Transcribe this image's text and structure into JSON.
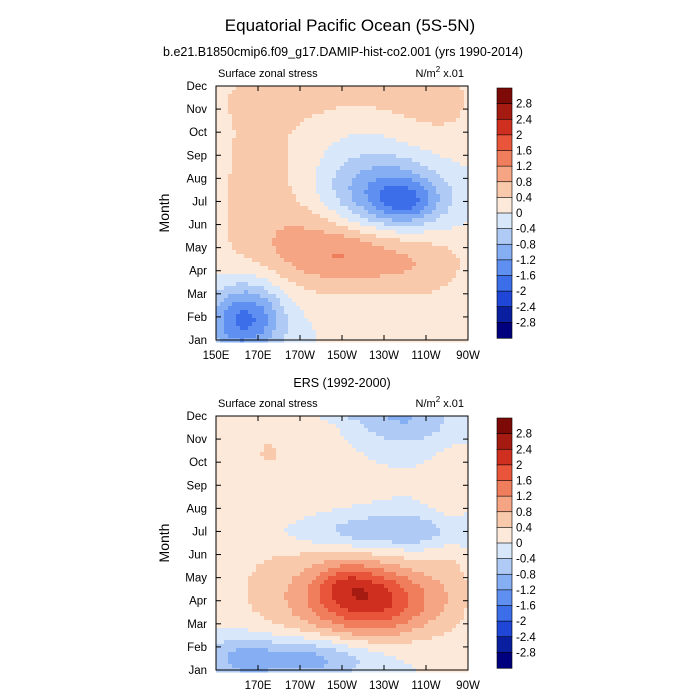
{
  "title": "Equatorial Pacific Ocean (5S-5N)",
  "subtitle": "b.e21.B1850cmip6.f09_g17.DAMIP-hist-co2.001 (yrs 1990-2014)",
  "colors": {
    "levels": [
      "#00007f",
      "#0a1fa0",
      "#1f46d6",
      "#3b6ee8",
      "#5f8ff0",
      "#86aef3",
      "#aecaf5",
      "#d8e7fa",
      "#fde9d9",
      "#f9c9ab",
      "#f5a583",
      "#f07e5c",
      "#e9553a",
      "#cf2f1f",
      "#a51b12",
      "#7d0a06"
    ]
  },
  "chart_data": [
    {
      "type": "heatmap",
      "panel_title": "",
      "left_label": "Surface zonal stress",
      "units": "N/m",
      "units_sup": "2",
      "units_scale": "x.01",
      "ylabel": "Month",
      "xlim": [
        150,
        270
      ],
      "x_ticks": [
        {
          "value": 150,
          "label": "150E"
        },
        {
          "value": 170,
          "label": "170E"
        },
        {
          "value": 190,
          "label": "170W"
        },
        {
          "value": 210,
          "label": "150W"
        },
        {
          "value": 230,
          "label": "130W"
        },
        {
          "value": 250,
          "label": "110W"
        },
        {
          "value": 270,
          "label": "90W"
        }
      ],
      "months": [
        "Jan",
        "Feb",
        "Mar",
        "Apr",
        "May",
        "Jun",
        "Jul",
        "Aug",
        "Sep",
        "Oct",
        "Nov",
        "Dec"
      ],
      "colorbar_levels": [
        "2.8",
        "2.4",
        "2",
        "1.6",
        "1.2",
        "0.8",
        "0.4",
        "0",
        "-0.4",
        "-0.8",
        "-1.2",
        "-1.6",
        "-2",
        "-2.4",
        "-2.8"
      ],
      "features": [
        {
          "x": 165,
          "m": 1.2,
          "sx": 12,
          "sm": 1.0,
          "amp": -1.4
        },
        {
          "x": 160,
          "m": 0.3,
          "sx": 14,
          "sm": 0.8,
          "amp": -0.6
        },
        {
          "x": 210,
          "m": 4.2,
          "sx": 35,
          "sm": 1.6,
          "amp": 0.9
        },
        {
          "x": 215,
          "m": 3.7,
          "sx": 22,
          "sm": 0.9,
          "amp": 0.5
        },
        {
          "x": 232,
          "m": 6.2,
          "sx": 22,
          "sm": 1.3,
          "amp": -1.7
        },
        {
          "x": 240,
          "m": 6.0,
          "sx": 10,
          "sm": 0.6,
          "amp": -0.8
        },
        {
          "x": 172,
          "m": 8.0,
          "sx": 20,
          "sm": 2.5,
          "amp": 0.5
        },
        {
          "x": 255,
          "m": 9.5,
          "sx": 20,
          "sm": 2.5,
          "amp": 0.4
        },
        {
          "x": 205,
          "m": 10.6,
          "sx": 40,
          "sm": 0.8,
          "amp": 0.4
        },
        {
          "x": 252,
          "m": 3.0,
          "sx": 14,
          "sm": 1.0,
          "amp": 0.3
        }
      ]
    },
    {
      "type": "heatmap",
      "panel_title": "ERS (1992-2000)",
      "left_label": "Surface zonal stress",
      "units": "N/m",
      "units_sup": "2",
      "units_scale": "x.01",
      "ylabel": "Month",
      "xlim": [
        150,
        270
      ],
      "x_ticks": [
        {
          "value": 170,
          "label": "170E"
        },
        {
          "value": 190,
          "label": "170W"
        },
        {
          "value": 210,
          "label": "150W"
        },
        {
          "value": 230,
          "label": "130W"
        },
        {
          "value": 250,
          "label": "110W"
        },
        {
          "value": 270,
          "label": "90W"
        }
      ],
      "months": [
        "Jan",
        "Feb",
        "Mar",
        "Apr",
        "May",
        "Jun",
        "Jul",
        "Aug",
        "Sep",
        "Oct",
        "Nov",
        "Dec"
      ],
      "colorbar_levels": [
        "2.8",
        "2.4",
        "2",
        "1.6",
        "1.2",
        "0.8",
        "0.4",
        "0",
        "-0.4",
        "-0.8",
        "-1.2",
        "-1.6",
        "-2",
        "-2.4",
        "-2.8"
      ],
      "features": [
        {
          "x": 225,
          "m": 3.0,
          "sx": 22,
          "sm": 1.1,
          "amp": 1.9
        },
        {
          "x": 212,
          "m": 3.8,
          "sx": 10,
          "sm": 0.6,
          "amp": 0.5
        },
        {
          "x": 195,
          "m": 3.3,
          "sx": 35,
          "sm": 2.0,
          "amp": 0.5
        },
        {
          "x": 190,
          "m": 0.5,
          "sx": 25,
          "sm": 0.7,
          "amp": -1.2
        },
        {
          "x": 160,
          "m": 0.5,
          "sx": 10,
          "sm": 0.8,
          "amp": -0.5
        },
        {
          "x": 232,
          "m": 6.0,
          "sx": 35,
          "sm": 0.6,
          "amp": -0.9
        },
        {
          "x": 240,
          "m": 10.8,
          "sx": 18,
          "sm": 0.8,
          "amp": -0.8
        },
        {
          "x": 215,
          "m": 11.6,
          "sx": 14,
          "sm": 0.4,
          "amp": -1.0
        },
        {
          "x": 175,
          "m": 9.5,
          "sx": 25,
          "sm": 2.5,
          "amp": 0.4
        },
        {
          "x": 262,
          "m": 6.0,
          "sx": 8,
          "sm": 3.0,
          "amp": 0.3
        }
      ]
    }
  ]
}
